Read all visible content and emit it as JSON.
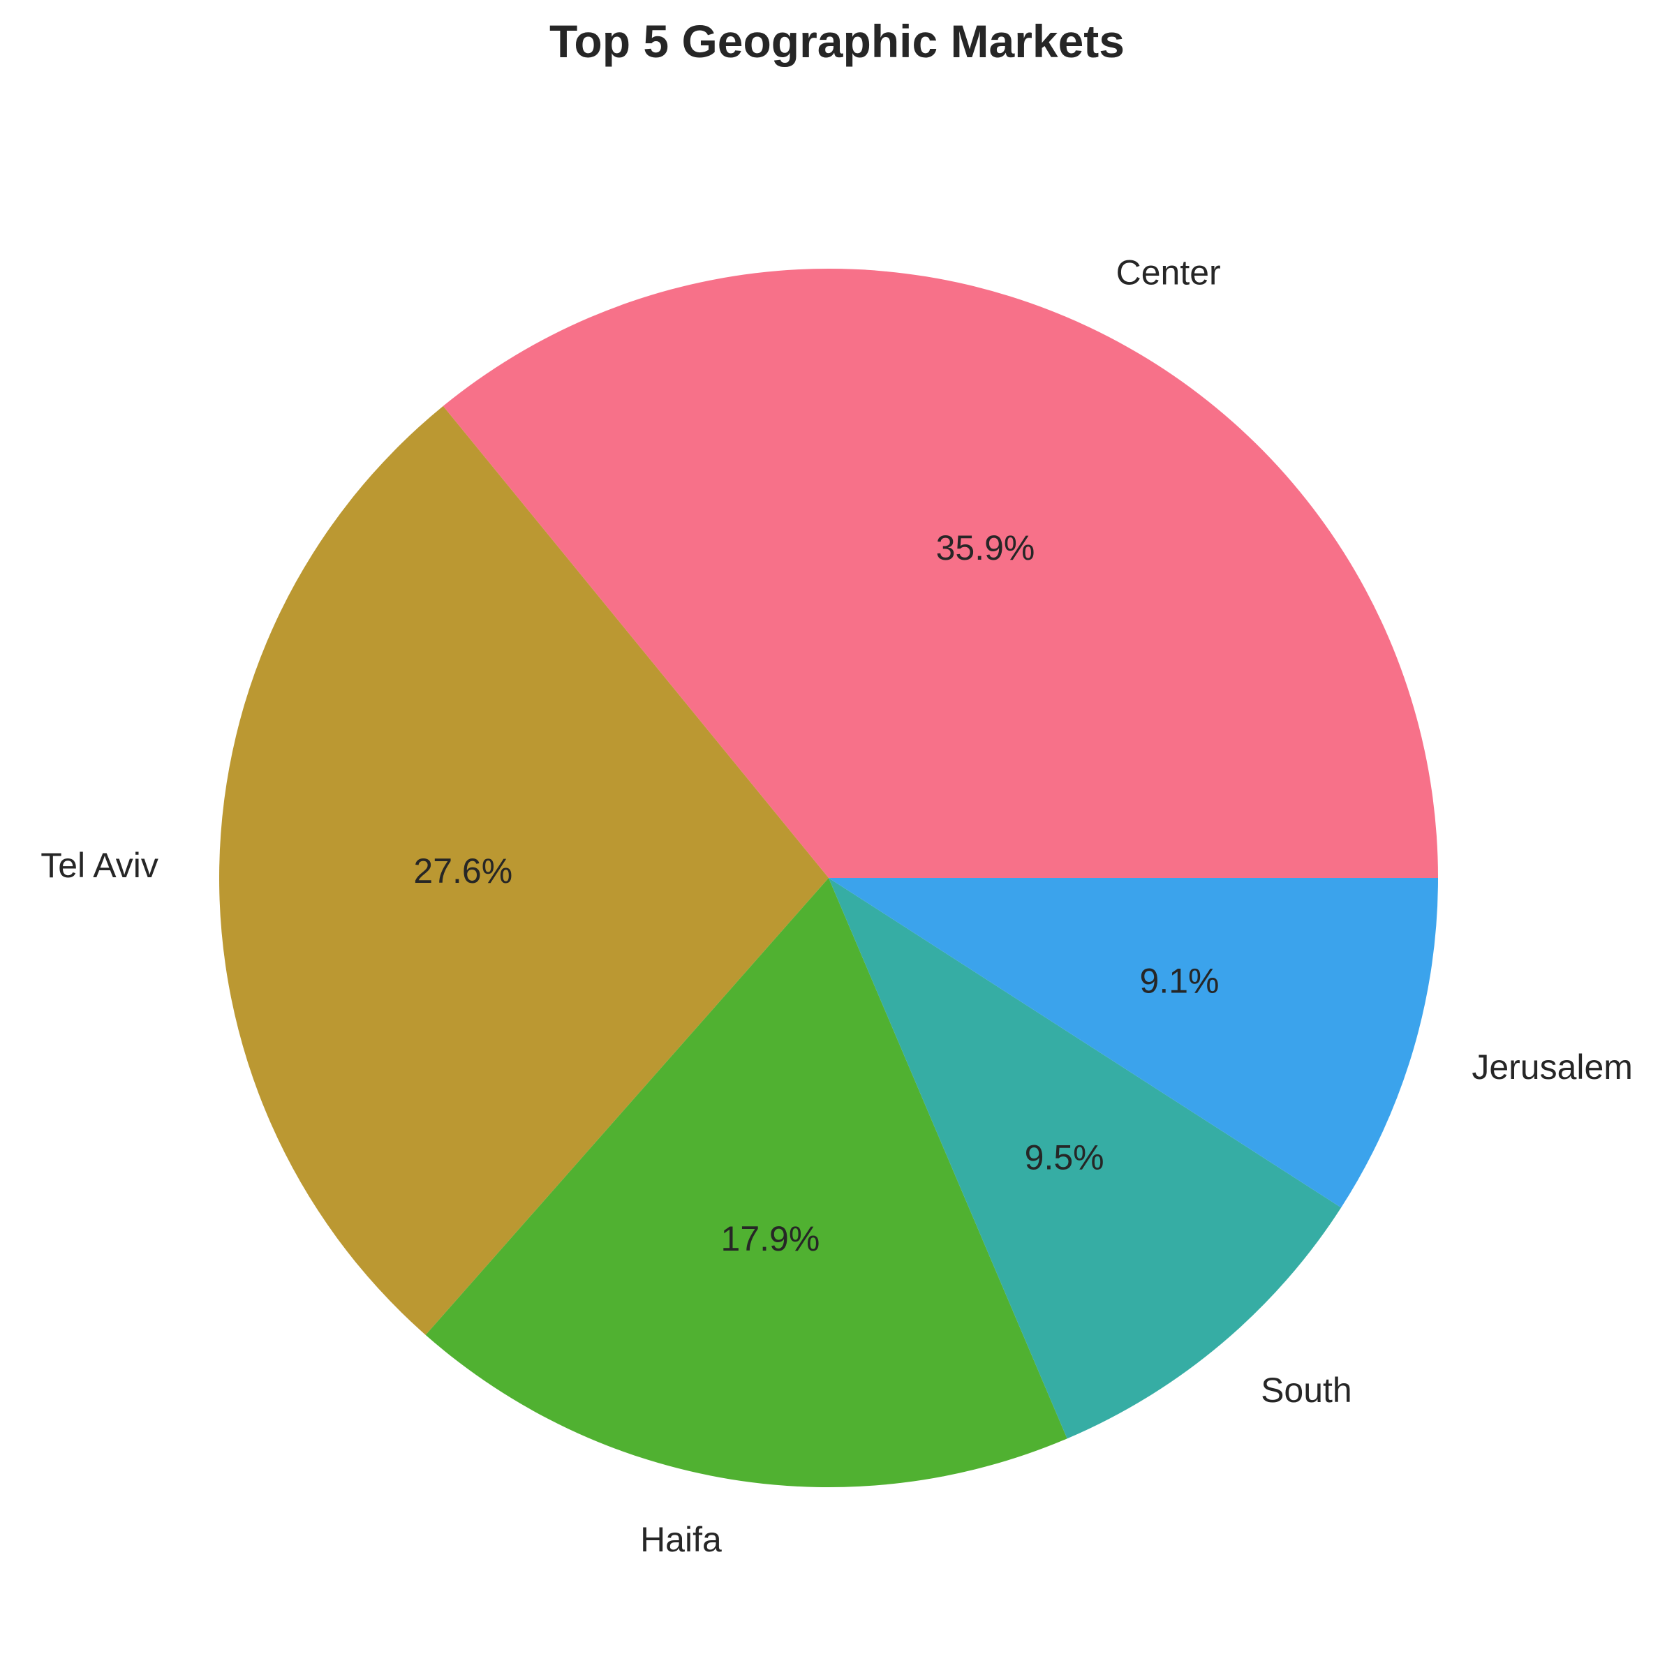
{
  "chart_data": {
    "type": "pie",
    "title": "Top 5 Geographic Markets",
    "start_angle_deg": 0,
    "direction": "counterclockwise",
    "slices": [
      {
        "label": "Center",
        "value": 35.9,
        "pct_label": "35.9%",
        "color": "#f77189"
      },
      {
        "label": "Tel Aviv",
        "value": 27.6,
        "pct_label": "27.6%",
        "color": "#bb9832"
      },
      {
        "label": "Haifa",
        "value": 17.9,
        "pct_label": "17.9%",
        "color": "#50b131"
      },
      {
        "label": "South",
        "value": 9.5,
        "pct_label": "9.5%",
        "color": "#36ada4"
      },
      {
        "label": "Jerusalem",
        "value": 9.1,
        "pct_label": "9.1%",
        "color": "#3ba3ec"
      }
    ]
  }
}
